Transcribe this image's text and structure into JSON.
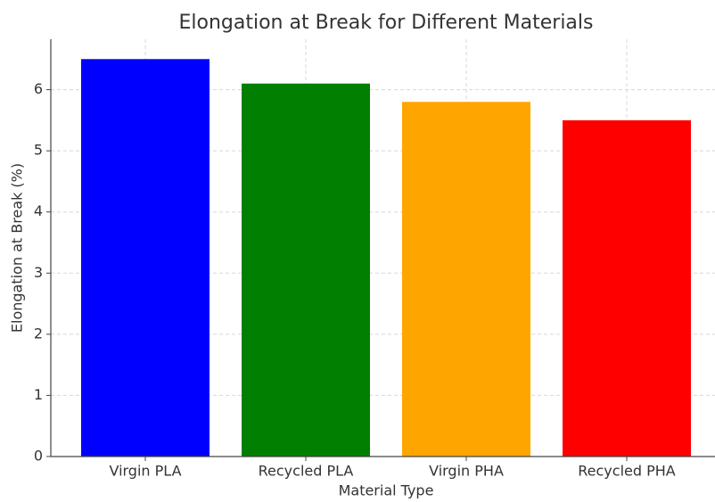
{
  "chart_data": {
    "type": "bar",
    "title": "Elongation at Break for Different Materials",
    "x_label": "Material Type",
    "y_label": "Elongation at Break (%)",
    "categories": [
      "Virgin PLA",
      "Recycled PLA",
      "Virgin PHA",
      "Recycled PHA"
    ],
    "values": [
      6.5,
      6.1,
      5.8,
      5.5
    ],
    "colors": [
      "#0000ff",
      "#007f00",
      "#ffa500",
      "#ff0000"
    ],
    "ylim": [
      0,
      6.825
    ],
    "yticks": [
      0,
      1,
      2,
      3,
      4,
      5,
      6
    ],
    "grid": true
  }
}
